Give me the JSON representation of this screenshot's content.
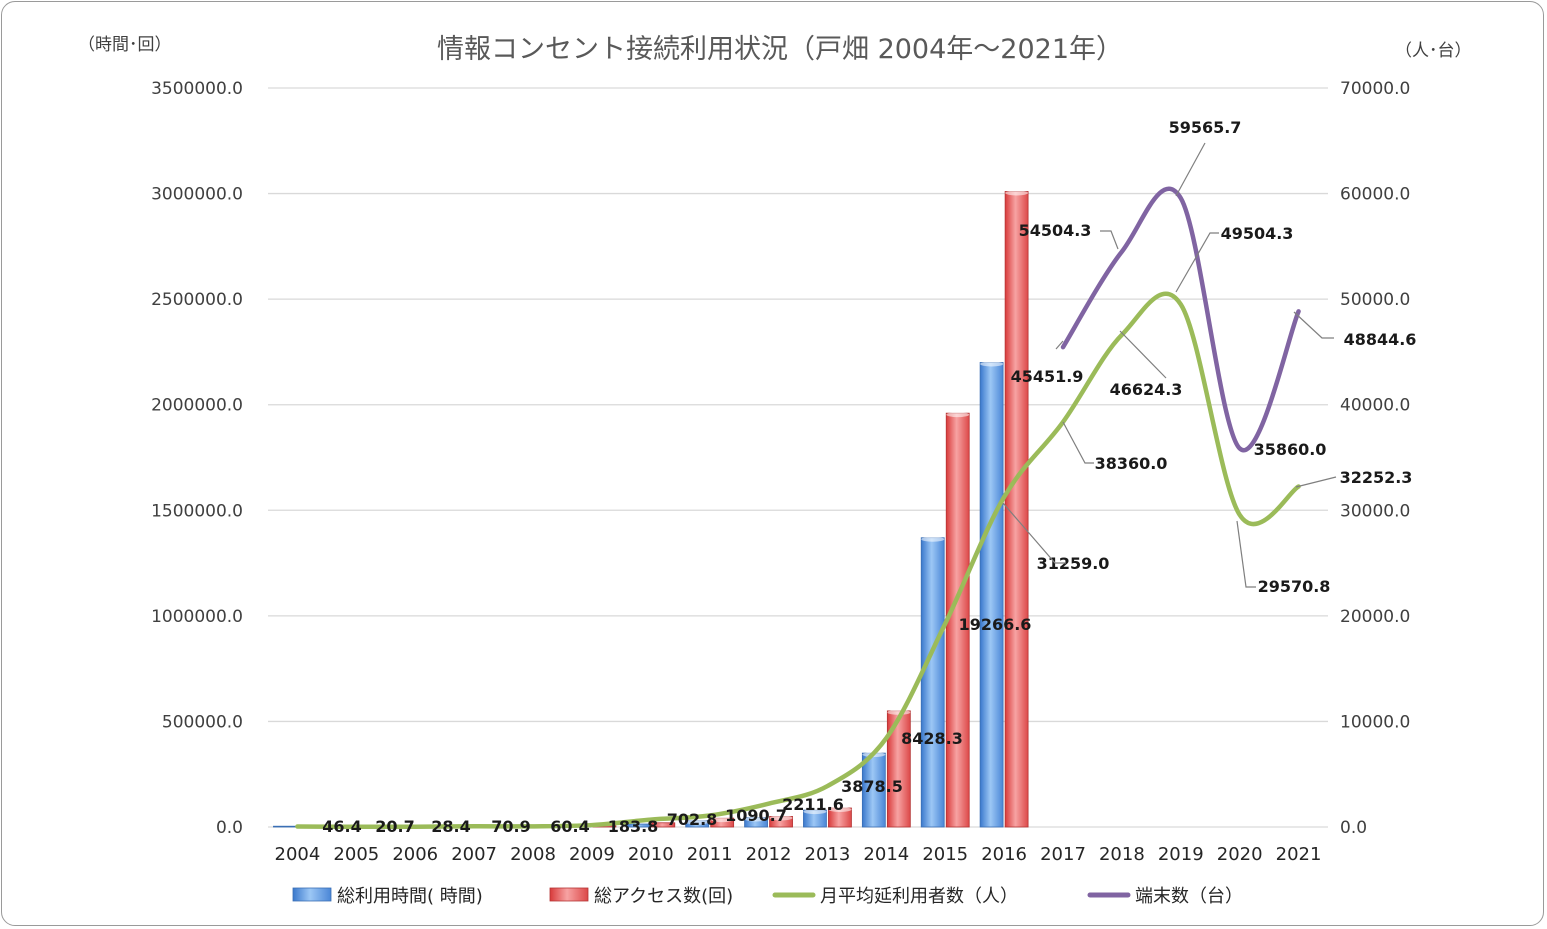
{
  "chart_data": {
    "type": "bar",
    "title": "情報コンセント接続利用状況（戸畑 2004年～2021年）",
    "y_left_unit": "（時間･回）",
    "y_right_unit": "（人･台）",
    "categories": [
      "2004",
      "2005",
      "2006",
      "2007",
      "2008",
      "2009",
      "2010",
      "2011",
      "2012",
      "2013",
      "2014",
      "2015",
      "2016",
      "2017",
      "2018",
      "2019",
      "2020",
      "2021"
    ],
    "y_left_ticks": [
      "0.0",
      "500000.0",
      "1000000.0",
      "1500000.0",
      "2000000.0",
      "2500000.0",
      "3000000.0",
      "3500000.0"
    ],
    "y_right_ticks": [
      "0.0",
      "10000.0",
      "20000.0",
      "30000.0",
      "40000.0",
      "50000.0",
      "60000.0",
      "70000.0"
    ],
    "ylim_left": [
      0,
      3500000
    ],
    "ylim_right": [
      0,
      70000
    ],
    "grid": true,
    "legend_position": "bottom",
    "series": [
      {
        "name": "総利用時間( 時間)",
        "type": "bar",
        "axis": "left",
        "color": "#4f8fdc",
        "values": [
          1000,
          500,
          600,
          1500,
          1200,
          3500,
          14000,
          30000,
          45000,
          80000,
          350000,
          1370000,
          2200000,
          null,
          null,
          null,
          null,
          null
        ]
      },
      {
        "name": "総アクセス数(回)",
        "type": "bar",
        "axis": "left",
        "color": "#e05a5a",
        "values": [
          2000,
          900,
          1000,
          2500,
          2000,
          6000,
          20000,
          42000,
          50000,
          90000,
          550000,
          1960000,
          3010000,
          null,
          null,
          null,
          null,
          null
        ]
      },
      {
        "name": "月平均延利用者数（人）",
        "type": "line",
        "axis": "right",
        "color": "#9bbb59",
        "values": [
          46.4,
          20.7,
          28.4,
          70.9,
          60.4,
          183.8,
          702.8,
          1090.7,
          2211.6,
          3878.5,
          8428.3,
          19266.6,
          31259.0,
          38360.0,
          46624.3,
          49504.3,
          29570.8,
          32252.3
        ]
      },
      {
        "name": "端末数（台）",
        "type": "line",
        "axis": "right",
        "color": "#8064a2",
        "values": [
          null,
          null,
          null,
          null,
          null,
          null,
          null,
          null,
          null,
          null,
          null,
          null,
          null,
          45451.9,
          54504.3,
          59565.7,
          35860.0,
          48844.6
        ]
      }
    ],
    "data_labels": {
      "users": [
        "46.4",
        "20.7",
        "28.4",
        "70.9",
        "60.4",
        "183.8",
        "702.8",
        "1090.7",
        "2211.6",
        "3878.5",
        "8428.3",
        "19266.6",
        "31259.0",
        "38360.0",
        "46624.3",
        "49504.3",
        "29570.8",
        "32252.3"
      ],
      "terminals": [
        "45451.9",
        "54504.3",
        "59565.7",
        "35860.0",
        "48844.6"
      ]
    }
  }
}
